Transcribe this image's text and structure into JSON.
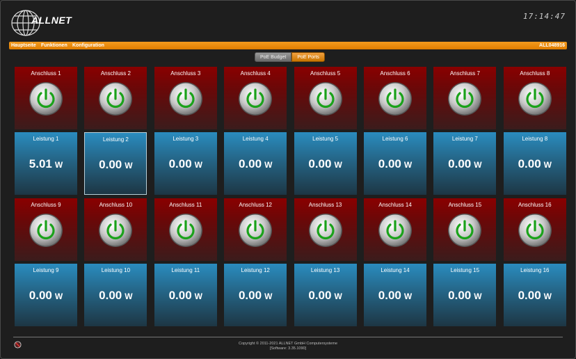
{
  "header": {
    "logo": "ALLNET",
    "clock": "17:14:47"
  },
  "menu": {
    "items": [
      "Hauptseite",
      "Funktionen",
      "Konfiguration"
    ],
    "device": "ALL048916"
  },
  "tabs": [
    "PoE Budget",
    "PoE Ports"
  ],
  "unit": "W",
  "ports": [
    {
      "anschluss": "Anschluss 1",
      "leistung": "Leistung 1",
      "power": "5.01"
    },
    {
      "anschluss": "Anschluss 2",
      "leistung": "Leistung 2",
      "power": "0.00"
    },
    {
      "anschluss": "Anschluss 3",
      "leistung": "Leistung 3",
      "power": "0.00"
    },
    {
      "anschluss": "Anschluss 4",
      "leistung": "Leistung 4",
      "power": "0.00"
    },
    {
      "anschluss": "Anschluss 5",
      "leistung": "Leistung 5",
      "power": "0.00"
    },
    {
      "anschluss": "Anschluss 6",
      "leistung": "Leistung 6",
      "power": "0.00"
    },
    {
      "anschluss": "Anschluss 7",
      "leistung": "Leistung 7",
      "power": "0.00"
    },
    {
      "anschluss": "Anschluss 8",
      "leistung": "Leistung 8",
      "power": "0.00"
    },
    {
      "anschluss": "Anschluss 9",
      "leistung": "Leistung 9",
      "power": "0.00"
    },
    {
      "anschluss": "Anschluss 10",
      "leistung": "Leistung 10",
      "power": "0.00"
    },
    {
      "anschluss": "Anschluss 11",
      "leistung": "Leistung 11",
      "power": "0.00"
    },
    {
      "anschluss": "Anschluss 12",
      "leistung": "Leistung 12",
      "power": "0.00"
    },
    {
      "anschluss": "Anschluss 13",
      "leistung": "Leistung 13",
      "power": "0.00"
    },
    {
      "anschluss": "Anschluss 14",
      "leistung": "Leistung 14",
      "power": "0.00"
    },
    {
      "anschluss": "Anschluss 15",
      "leistung": "Leistung 15",
      "power": "0.00"
    },
    {
      "anschluss": "Anschluss 16",
      "leistung": "Leistung 16",
      "power": "0.00"
    }
  ],
  "footer": {
    "copyright": "Copyright © 2011-2021 ALLNET GmbH Computersysteme",
    "software": "[Software: 3.35.1090]"
  }
}
